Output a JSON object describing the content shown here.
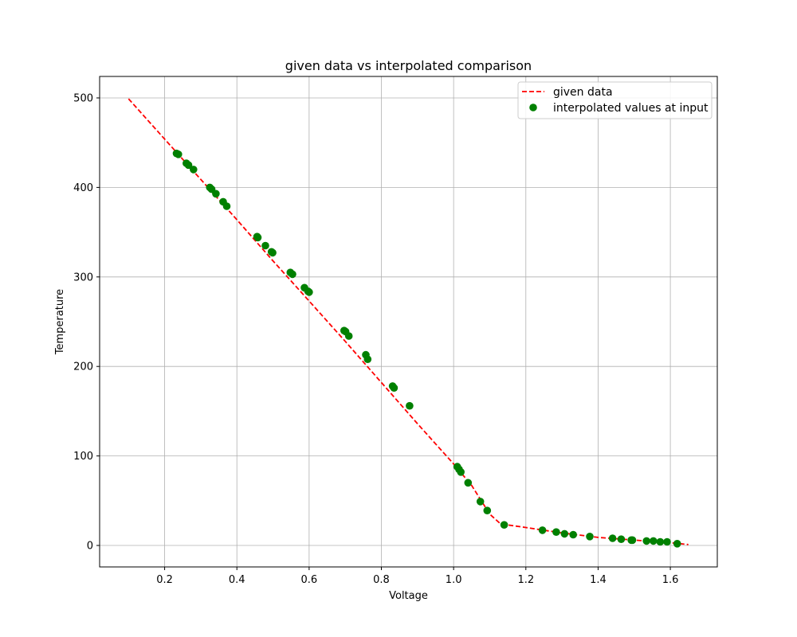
{
  "chart_data": {
    "type": "line",
    "title": "given data vs interpolated comparison",
    "xlabel": "Voltage",
    "ylabel": "Temperature",
    "xlim": [
      0.02,
      1.73
    ],
    "ylim": [
      -24,
      524
    ],
    "xticks": [
      0.2,
      0.4,
      0.6,
      0.8,
      1.0,
      1.2,
      1.4,
      1.6
    ],
    "xtick_labels": [
      "0.2",
      "0.4",
      "0.6",
      "0.8",
      "1.0",
      "1.2",
      "1.4",
      "1.6"
    ],
    "yticks": [
      0,
      100,
      200,
      300,
      400,
      500
    ],
    "ytick_labels": [
      "0",
      "100",
      "200",
      "300",
      "400",
      "500"
    ],
    "grid": true,
    "legend_position": "top-right",
    "series": [
      {
        "name": "given data",
        "style": "dashed-line",
        "color": "#ff0000",
        "x": [
          0.1,
          0.2,
          0.3,
          0.4,
          0.5,
          0.6,
          0.7,
          0.8,
          0.9,
          1.0,
          1.05,
          1.1,
          1.13,
          1.2,
          1.3,
          1.4,
          1.5,
          1.6,
          1.65
        ],
        "y": [
          499,
          454,
          409,
          364,
          318,
          273,
          228,
          182,
          136,
          91,
          67,
          35,
          24,
          20,
          14,
          9,
          6,
          3,
          1
        ]
      },
      {
        "name": "interpolated values at input",
        "style": "markers",
        "color": "#008000",
        "x": [
          0.233,
          0.238,
          0.26,
          0.266,
          0.28,
          0.325,
          0.33,
          0.342,
          0.362,
          0.372,
          0.456,
          0.458,
          0.479,
          0.496,
          0.499,
          0.548,
          0.554,
          0.587,
          0.597,
          0.6,
          0.697,
          0.701,
          0.71,
          0.757,
          0.762,
          0.831,
          0.835,
          0.878,
          1.01,
          1.015,
          1.02,
          1.04,
          1.074,
          1.093,
          1.14,
          1.246,
          1.284,
          1.307,
          1.331,
          1.377,
          1.44,
          1.464,
          1.492,
          1.495,
          1.534,
          1.553,
          1.572,
          1.591,
          1.619
        ],
        "y": [
          438,
          437,
          427,
          425,
          420,
          400,
          398,
          393,
          384,
          379,
          345,
          344,
          335,
          328,
          327,
          305,
          303,
          288,
          284,
          283,
          240,
          239,
          234,
          213,
          208,
          178,
          176,
          156,
          88,
          85,
          82,
          70,
          49,
          39,
          23,
          17,
          15,
          13,
          12,
          10,
          8,
          7,
          6,
          6,
          5,
          5,
          4,
          4,
          2
        ]
      }
    ]
  }
}
